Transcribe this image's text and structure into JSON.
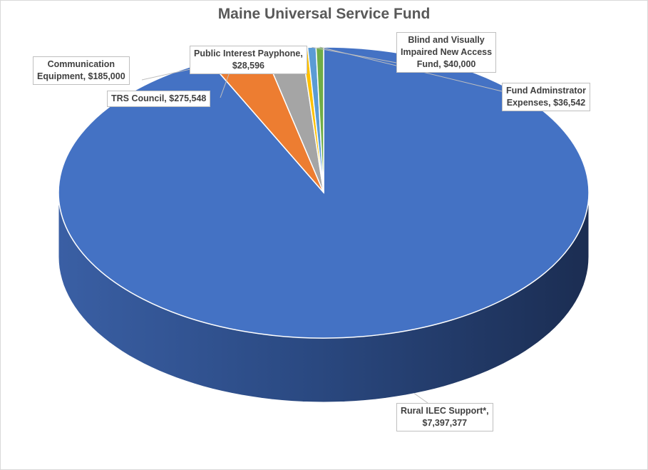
{
  "chart_data": {
    "type": "pie",
    "title": "Maine Universal Service Fund",
    "slices": [
      {
        "name": "Rural ILEC Support*",
        "value": 7397377,
        "value_label": "$7,397,377",
        "color": "#4472C4"
      },
      {
        "name": "TRS Council",
        "value": 275548,
        "value_label": "$275,548",
        "color": "#ED7D31"
      },
      {
        "name": "Communication Equipment",
        "value": 185000,
        "value_label": "$185,000",
        "color": "#A5A5A5"
      },
      {
        "name": "Public Interest Payphone",
        "value": 28596,
        "value_label": "$28,596",
        "color": "#FFC000"
      },
      {
        "name": "Blind and Visually Impaired New Access Fund",
        "value": 40000,
        "value_label": "$40,000",
        "color": "#5B9BD5"
      },
      {
        "name": "Fund Adminstrator Expenses",
        "value": 36542,
        "value_label": "$36,542",
        "color": "#70AD47"
      }
    ],
    "labels": {
      "rural": [
        "Rural ILEC Support*,",
        "$7,397,377"
      ],
      "trs": [
        "TRS Council, $275,548"
      ],
      "comm": [
        "Communication",
        "Equipment, $185,000"
      ],
      "payphone": [
        "Public Interest Payphone,",
        "$28,596"
      ],
      "blind": [
        "Blind and Visually",
        "Impaired New Access",
        "Fund, $40,000"
      ],
      "admin": [
        "Fund Adminstrator",
        "Expenses, $36,542"
      ]
    }
  }
}
